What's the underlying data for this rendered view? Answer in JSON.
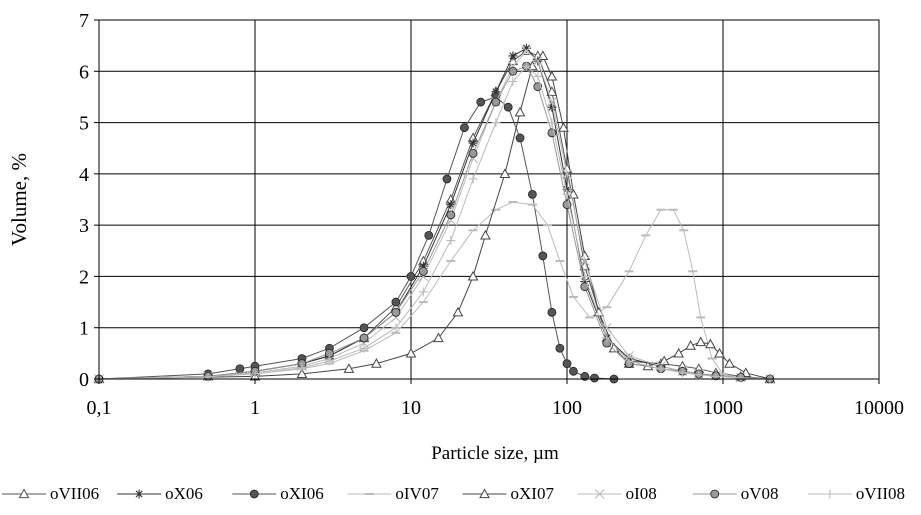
{
  "chart_data": {
    "type": "scatter",
    "xlabel": "Particle size, µm",
    "ylabel": "Volume, %",
    "xscale": "log",
    "xlim": [
      0.1,
      10000
    ],
    "ylim": [
      0,
      7
    ],
    "xticks": [
      0.1,
      1,
      10,
      100,
      1000,
      10000
    ],
    "xtick_labels": [
      "0,1",
      "1",
      "10",
      "100",
      "1000",
      "10000"
    ],
    "yticks": [
      0,
      1,
      2,
      3,
      4,
      5,
      6,
      7
    ],
    "ytick_labels": [
      "0",
      "1",
      "2",
      "3",
      "4",
      "5",
      "6",
      "7"
    ],
    "grid": true,
    "legend_position": "bottom",
    "series": [
      {
        "name": "oVII06",
        "color": "#555555",
        "marker": "triangle-open",
        "x": [
          0.1,
          0.5,
          1,
          2,
          3,
          5,
          8,
          12,
          18,
          25,
          35,
          45,
          55,
          65,
          80,
          100,
          130,
          180,
          250,
          400,
          550,
          700,
          900,
          1300,
          2000
        ],
        "y": [
          0,
          0.05,
          0.15,
          0.3,
          0.45,
          0.8,
          1.4,
          2.3,
          3.5,
          4.7,
          5.6,
          6.2,
          6.4,
          6.3,
          5.6,
          4.1,
          2.2,
          0.8,
          0.35,
          0.3,
          0.25,
          0.2,
          0.12,
          0.05,
          0
        ]
      },
      {
        "name": "oX06",
        "color": "#333333",
        "marker": "star",
        "x": [
          0.1,
          0.5,
          1,
          2,
          3,
          5,
          8,
          12,
          18,
          25,
          35,
          45,
          55,
          65,
          80,
          100,
          130,
          180,
          250,
          400,
          550,
          700,
          900,
          1300,
          2000
        ],
        "y": [
          0,
          0.05,
          0.15,
          0.3,
          0.45,
          0.8,
          1.3,
          2.2,
          3.4,
          4.6,
          5.6,
          6.3,
          6.45,
          6.2,
          5.3,
          3.7,
          1.9,
          0.8,
          0.4,
          0.25,
          0.15,
          0.1,
          0.07,
          0.03,
          0
        ]
      },
      {
        "name": "oXI06",
        "color": "#555555",
        "marker": "circle-filled",
        "x": [
          0.1,
          0.5,
          0.8,
          1,
          2,
          3,
          5,
          8,
          10,
          13,
          17,
          22,
          28,
          35,
          42,
          50,
          60,
          70,
          80,
          90,
          100,
          110,
          130,
          150,
          200
        ],
        "y": [
          0,
          0.1,
          0.2,
          0.25,
          0.4,
          0.6,
          1.0,
          1.5,
          2.0,
          2.8,
          3.9,
          4.9,
          5.4,
          5.5,
          5.3,
          4.7,
          3.6,
          2.4,
          1.3,
          0.6,
          0.3,
          0.15,
          0.05,
          0.02,
          0
        ]
      },
      {
        "name": "oIV07",
        "color": "#bbbbbb",
        "marker": "dash",
        "x": [
          0.1,
          0.5,
          1,
          2,
          3,
          5,
          8,
          12,
          18,
          25,
          35,
          45,
          60,
          75,
          90,
          110,
          140,
          180,
          250,
          320,
          400,
          480,
          560,
          640,
          720,
          850,
          1000,
          1300
        ],
        "y": [
          0,
          0.05,
          0.1,
          0.2,
          0.3,
          0.55,
          0.9,
          1.5,
          2.3,
          2.9,
          3.3,
          3.45,
          3.4,
          3.0,
          2.3,
          1.6,
          1.2,
          1.4,
          2.1,
          2.8,
          3.3,
          3.3,
          2.9,
          2.1,
          1.2,
          0.4,
          0.1,
          0
        ]
      },
      {
        "name": "oXI07",
        "color": "#444444",
        "marker": "triangle-open",
        "x": [
          0.1,
          1,
          2,
          4,
          6,
          10,
          15,
          20,
          25,
          30,
          40,
          50,
          60,
          70,
          80,
          95,
          110,
          130,
          160,
          200,
          250,
          330,
          420,
          520,
          620,
          720,
          830,
          950,
          1100,
          1400,
          2000
        ],
        "y": [
          0,
          0.05,
          0.1,
          0.2,
          0.3,
          0.5,
          0.8,
          1.3,
          2.0,
          2.8,
          4.0,
          5.2,
          6.1,
          6.3,
          5.9,
          4.9,
          3.6,
          2.4,
          1.3,
          0.6,
          0.3,
          0.25,
          0.35,
          0.5,
          0.65,
          0.72,
          0.68,
          0.5,
          0.3,
          0.12,
          0
        ]
      },
      {
        "name": "oI08",
        "color": "#bbbbbb",
        "marker": "x",
        "x": [
          0.1,
          0.5,
          1,
          2,
          3,
          5,
          8,
          12,
          18,
          25,
          35,
          45,
          55,
          65,
          80,
          100,
          130,
          180,
          250,
          400,
          550,
          700,
          900,
          1300,
          2000
        ],
        "y": [
          0,
          0.05,
          0.12,
          0.25,
          0.4,
          0.7,
          1.2,
          2.0,
          3.1,
          4.3,
          5.4,
          6.1,
          6.4,
          6.2,
          5.4,
          4.0,
          2.3,
          1.0,
          0.45,
          0.25,
          0.15,
          0.1,
          0.06,
          0.03,
          0
        ]
      },
      {
        "name": "oV08",
        "color": "#999999",
        "marker": "circle-filled",
        "x": [
          0.1,
          0.5,
          1,
          2,
          3,
          5,
          8,
          12,
          18,
          25,
          35,
          45,
          55,
          65,
          80,
          100,
          130,
          180,
          250,
          400,
          550,
          700,
          900,
          1300,
          2000
        ],
        "y": [
          0,
          0.05,
          0.15,
          0.3,
          0.5,
          0.8,
          1.3,
          2.1,
          3.2,
          4.4,
          5.4,
          6.0,
          6.1,
          5.7,
          4.8,
          3.4,
          1.8,
          0.7,
          0.3,
          0.2,
          0.15,
          0.1,
          0.06,
          0.03,
          0
        ]
      },
      {
        "name": "oVII08",
        "color": "#bbbbbb",
        "marker": "plus",
        "x": [
          0.1,
          0.5,
          1,
          2,
          3,
          5,
          8,
          12,
          18,
          25,
          35,
          45,
          55,
          65,
          80,
          100,
          130,
          180,
          250,
          400,
          550,
          700,
          900,
          1300,
          2000
        ],
        "y": [
          0,
          0.04,
          0.1,
          0.22,
          0.35,
          0.6,
          1.0,
          1.7,
          2.7,
          3.9,
          5.0,
          5.8,
          6.1,
          5.9,
          5.0,
          3.6,
          2.0,
          0.8,
          0.35,
          0.2,
          0.12,
          0.08,
          0.05,
          0.02,
          0
        ]
      }
    ]
  }
}
